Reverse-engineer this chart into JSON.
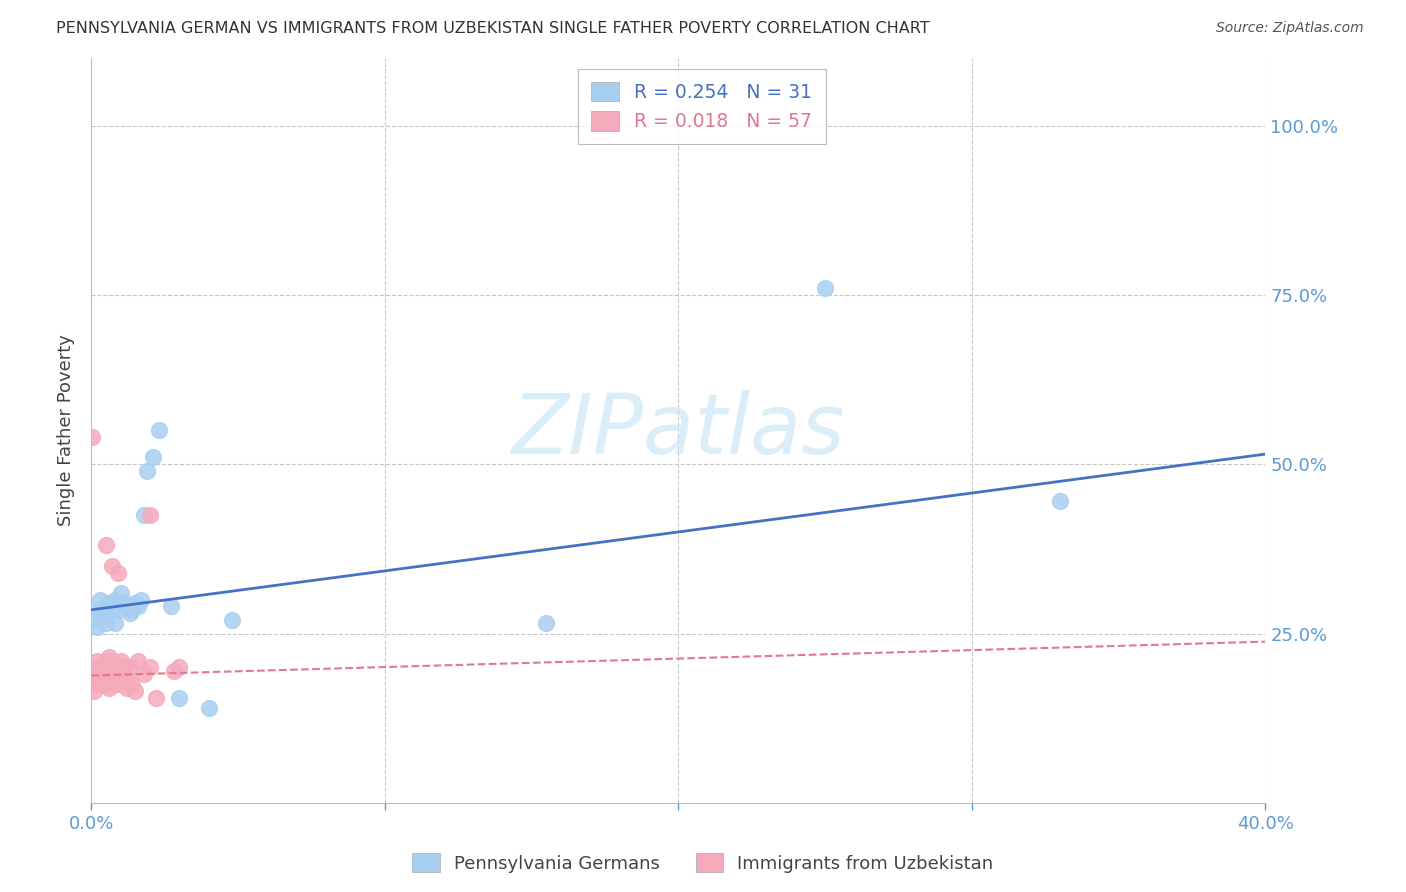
{
  "title": "PENNSYLVANIA GERMAN VS IMMIGRANTS FROM UZBEKISTAN SINGLE FATHER POVERTY CORRELATION CHART",
  "source": "Source: ZipAtlas.com",
  "ylabel": "Single Father Poverty",
  "blue_color": "#A8CFF0",
  "pink_color": "#F5AABB",
  "trendline_blue": "#4472C4",
  "trendline_pink": "#E07890",
  "watermark": "ZIPatlas",
  "blue_R": 0.254,
  "blue_N": 31,
  "pink_R": 0.018,
  "pink_N": 57,
  "blue_scatter_x": [
    0.001,
    0.002,
    0.002,
    0.003,
    0.004,
    0.005,
    0.005,
    0.006,
    0.007,
    0.008,
    0.008,
    0.009,
    0.01,
    0.011,
    0.012,
    0.013,
    0.014,
    0.015,
    0.016,
    0.017,
    0.018,
    0.019,
    0.021,
    0.023,
    0.027,
    0.03,
    0.048,
    0.155,
    0.25,
    0.33,
    0.04
  ],
  "blue_scatter_y": [
    0.27,
    0.285,
    0.26,
    0.3,
    0.27,
    0.285,
    0.265,
    0.295,
    0.285,
    0.3,
    0.265,
    0.285,
    0.31,
    0.295,
    0.29,
    0.28,
    0.285,
    0.295,
    0.29,
    0.3,
    0.425,
    0.49,
    0.51,
    0.55,
    0.29,
    0.155,
    0.27,
    0.265,
    0.76,
    0.445,
    0.14
  ],
  "pink_scatter_x": [
    0.0003,
    0.001,
    0.001,
    0.001,
    0.001,
    0.002,
    0.002,
    0.002,
    0.002,
    0.003,
    0.003,
    0.003,
    0.003,
    0.003,
    0.004,
    0.004,
    0.004,
    0.004,
    0.004,
    0.005,
    0.005,
    0.005,
    0.005,
    0.005,
    0.006,
    0.006,
    0.006,
    0.006,
    0.007,
    0.007,
    0.007,
    0.007,
    0.008,
    0.008,
    0.008,
    0.008,
    0.009,
    0.009,
    0.01,
    0.01,
    0.011,
    0.011,
    0.012,
    0.012,
    0.013,
    0.014,
    0.015,
    0.016,
    0.018,
    0.02,
    0.022,
    0.028,
    0.03,
    0.02,
    0.005,
    0.007,
    0.009
  ],
  "pink_scatter_y": [
    0.54,
    0.19,
    0.2,
    0.175,
    0.165,
    0.195,
    0.185,
    0.21,
    0.18,
    0.19,
    0.2,
    0.195,
    0.185,
    0.175,
    0.2,
    0.195,
    0.185,
    0.205,
    0.175,
    0.2,
    0.195,
    0.185,
    0.21,
    0.175,
    0.2,
    0.215,
    0.185,
    0.17,
    0.195,
    0.21,
    0.195,
    0.185,
    0.175,
    0.2,
    0.195,
    0.185,
    0.195,
    0.175,
    0.2,
    0.21,
    0.2,
    0.195,
    0.185,
    0.17,
    0.2,
    0.175,
    0.165,
    0.21,
    0.19,
    0.2,
    0.155,
    0.195,
    0.2,
    0.425,
    0.38,
    0.35,
    0.34
  ],
  "blue_trendline_x": [
    0.0,
    0.4
  ],
  "blue_trendline_y": [
    0.285,
    0.515
  ],
  "pink_trendline_x": [
    0.0,
    0.4
  ],
  "pink_trendline_y": [
    0.188,
    0.238
  ],
  "xlim": [
    0.0,
    0.4
  ],
  "ylim": [
    0.0,
    1.1
  ],
  "xticks": [
    0.0,
    0.1,
    0.2,
    0.3,
    0.4
  ],
  "xticklabels": [
    "0.0%",
    "",
    "",
    "",
    "40.0%"
  ],
  "yticks_right": [
    0.0,
    0.25,
    0.5,
    0.75,
    1.0
  ],
  "yticklabels_right": [
    "",
    "25.0%",
    "50.0%",
    "75.0%",
    "100.0%"
  ],
  "grid_color": "#C8C8C8",
  "tick_color": "#5B9BD5",
  "title_fontsize": 11.5,
  "axis_label_fontsize": 13,
  "tick_fontsize": 13
}
